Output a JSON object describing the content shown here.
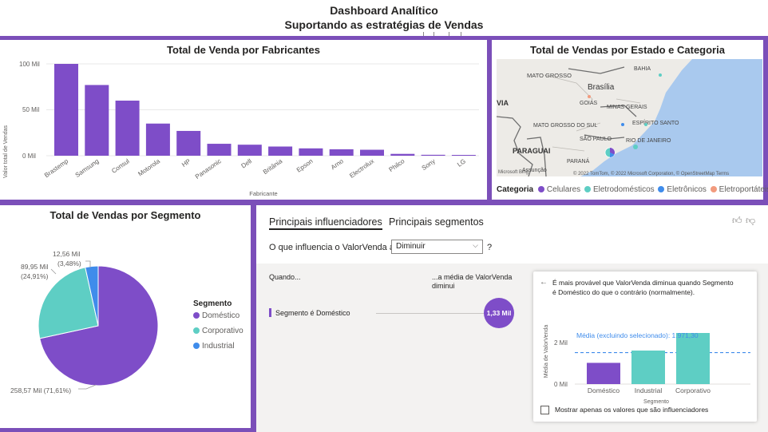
{
  "header": {
    "title": "Dashboard Analítico",
    "subtitle": "Suportando as estratégias de Vendas"
  },
  "colors": {
    "accent": "#7B4FB9",
    "bar": "#7E4DC8",
    "celulares": "#7E4DC8",
    "eletrodomesticos": "#5ECEC4",
    "eletronicos": "#3F8CEB",
    "eletroportateis": "#F29B7E",
    "map_sea": "#A9C9EE",
    "map_land": "#EDEBE7"
  },
  "manufacturers": {
    "title": "Total de Venda por Fabricantes",
    "xlabel": "Fabricante",
    "ylabel": "Valor total de Vendas",
    "y_ticks": [
      "100 Mil",
      "50 Mil",
      "0 Mil"
    ]
  },
  "map": {
    "title": "Total de Vendas por Estado e Categoria",
    "labels": [
      "MATO GROSSO",
      "Brasília",
      "GOIÁS",
      "MINAS GERAIS",
      "BAHIA",
      "MATO GROSSO DO SUL",
      "ESPÍRITO SANTO",
      "SÃO PAULO",
      "RIO DE JANEIRO",
      "PARAGUAI",
      "PARANÁ",
      "Assunção",
      "VIA"
    ],
    "attribution": "© 2022 TomTom, © 2022 Microsoft Corporation, © OpenStreetMap  Terms",
    "brand": "Microsoft Bing",
    "legend_title": "Categoria",
    "legend": [
      "Celulares",
      "Eletrodomésticos",
      "Eletrônicos",
      "Eletroportáteis"
    ]
  },
  "segments": {
    "title": "Total de Vendas por Segmento",
    "legend_title": "Segmento",
    "labels": {
      "industrial_value": "12,56 Mil",
      "industrial_pct": "(3,48%)",
      "corporativo_value": "89,95 Mil",
      "corporativo_pct": "(24,91%)",
      "domestico": "258,57 Mil (71,61%)"
    }
  },
  "influencers": {
    "tab_active": "Principais influenciadores",
    "tab_other": "Principais segmentos",
    "question": "O que influencia o ValorVenda a",
    "select_value": "Diminuir",
    "help": "?",
    "col_when": "Quando...",
    "col_avg_line1": "...a média de ValorVenda",
    "col_avg_line2": "diminui",
    "row_label": "Segmento é Doméstico",
    "bubble": "1,33 Mil",
    "detail": {
      "text_line1": "É mais provável que ValorVenda diminua quando Segmento",
      "text_line2": "é Doméstico do que o contrário (normalmente).",
      "avg_label": "Média (excluindo selecionado): 1.971,30",
      "ylabel": "Média de ValorVenda",
      "xlabel": "Segmento",
      "y_ticks": [
        "2 Mil",
        "0 Mil"
      ],
      "checkbox_label": "Mostrar apenas os valores que são influenciadores"
    }
  },
  "chart_data": [
    {
      "type": "bar",
      "title": "Total de Venda por Fabricantes",
      "xlabel": "Fabricante",
      "ylabel": "Valor total de Vendas",
      "unit": "Mil",
      "categories": [
        "Brastemp",
        "Samsung",
        "Consul",
        "Motorola",
        "HP",
        "Panasonic",
        "Dell",
        "Britânia",
        "Epson",
        "Arno",
        "Electrolux",
        "Philco",
        "Sony",
        "LG"
      ],
      "values": [
        100,
        77,
        60,
        35,
        27,
        13,
        12,
        10,
        8,
        7,
        6.5,
        2,
        1,
        0.5
      ],
      "ylim": [
        0,
        100
      ]
    },
    {
      "type": "pie",
      "title": "Total de Vendas por Segmento",
      "categories": [
        "Doméstico",
        "Corporativo",
        "Industrial"
      ],
      "values": [
        258.57,
        89.95,
        12.56
      ],
      "percentages": [
        71.61,
        24.91,
        3.48
      ]
    },
    {
      "type": "bar",
      "title": "",
      "xlabel": "Segmento",
      "ylabel": "Média de ValorVenda",
      "categories": [
        "Doméstico",
        "Industrial",
        "Corporativo"
      ],
      "values": [
        1.33,
        2.1,
        3.2
      ],
      "reference_line": 1.9713,
      "ylim": [
        0,
        3.5
      ]
    }
  ]
}
